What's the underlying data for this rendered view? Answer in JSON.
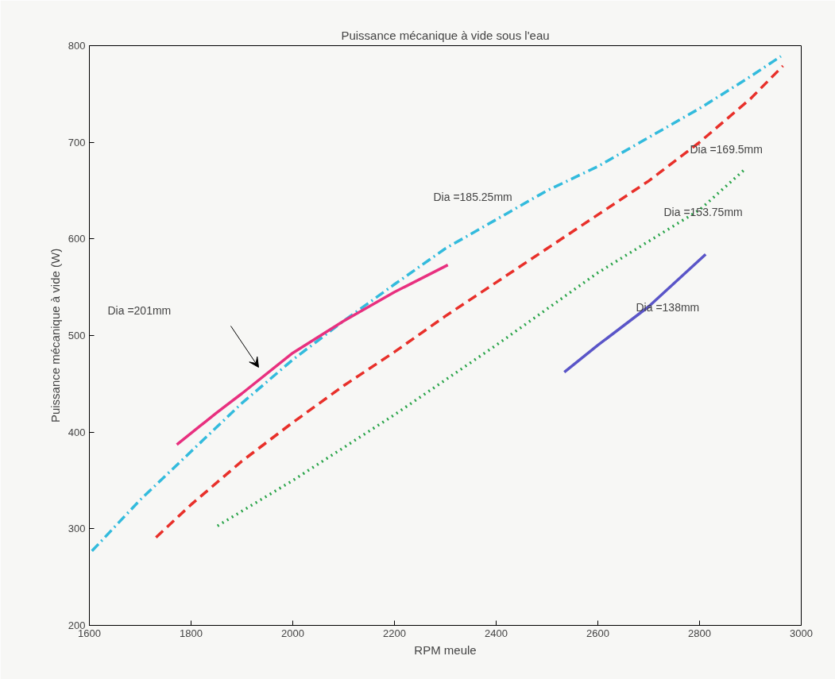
{
  "chart_data": {
    "type": "line",
    "title": "Puissance mécanique à vide sous l'eau",
    "xlabel": "RPM meule",
    "ylabel": "Puissance mécanique à vide (W)",
    "xlim": [
      1600,
      3000
    ],
    "xticks": [
      1600,
      1800,
      2000,
      2200,
      2400,
      2600,
      2800,
      3000
    ],
    "ylim": [
      200,
      800
    ],
    "yticks": [
      200,
      300,
      400,
      500,
      600,
      700,
      800
    ],
    "grid": false,
    "series": [
      {
        "color": "#33bbdd",
        "line_style": "dashdot",
        "x": [
          1605,
          1700,
          1800,
          1900,
          2000,
          2100,
          2200,
          2300,
          2400,
          2500,
          2600,
          2700,
          2800,
          2900,
          2960
        ],
        "values": [
          277,
          330,
          380,
          430,
          475,
          515,
          553,
          590,
          620,
          650,
          675,
          705,
          735,
          768,
          789
        ]
      },
      {
        "color": "#e8302a",
        "line_style": "dashed",
        "x": [
          1731,
          1800,
          1900,
          2000,
          2100,
          2200,
          2300,
          2400,
          2500,
          2600,
          2700,
          2800,
          2900,
          2964
        ],
        "values": [
          291,
          325,
          370,
          410,
          448,
          483,
          520,
          555,
          590,
          625,
          660,
          700,
          745,
          779
        ]
      },
      {
        "color": "#2aa44a",
        "line_style": "dotted",
        "x": [
          1852,
          2000,
          2200,
          2400,
          2600,
          2800,
          2889
        ],
        "values": [
          303,
          350,
          418,
          490,
          565,
          630,
          672
        ]
      },
      {
        "color": "#5a55c8",
        "line_style": "solid",
        "x": [
          2534,
          2600,
          2700,
          2812
        ],
        "values": [
          462,
          490,
          530,
          584
        ]
      },
      {
        "color": "#e8307f",
        "line_style": "solid",
        "x": [
          1772,
          1850,
          1900,
          2000,
          2100,
          2200,
          2305
        ],
        "values": [
          387,
          420,
          440,
          482,
          515,
          545,
          573
        ]
      }
    ],
    "annotations": [
      "Dia =201mm",
      "Dia =185.25mm",
      "Dia =169.5mm",
      "Dia =153.75mm",
      "Dia =138mm"
    ]
  }
}
